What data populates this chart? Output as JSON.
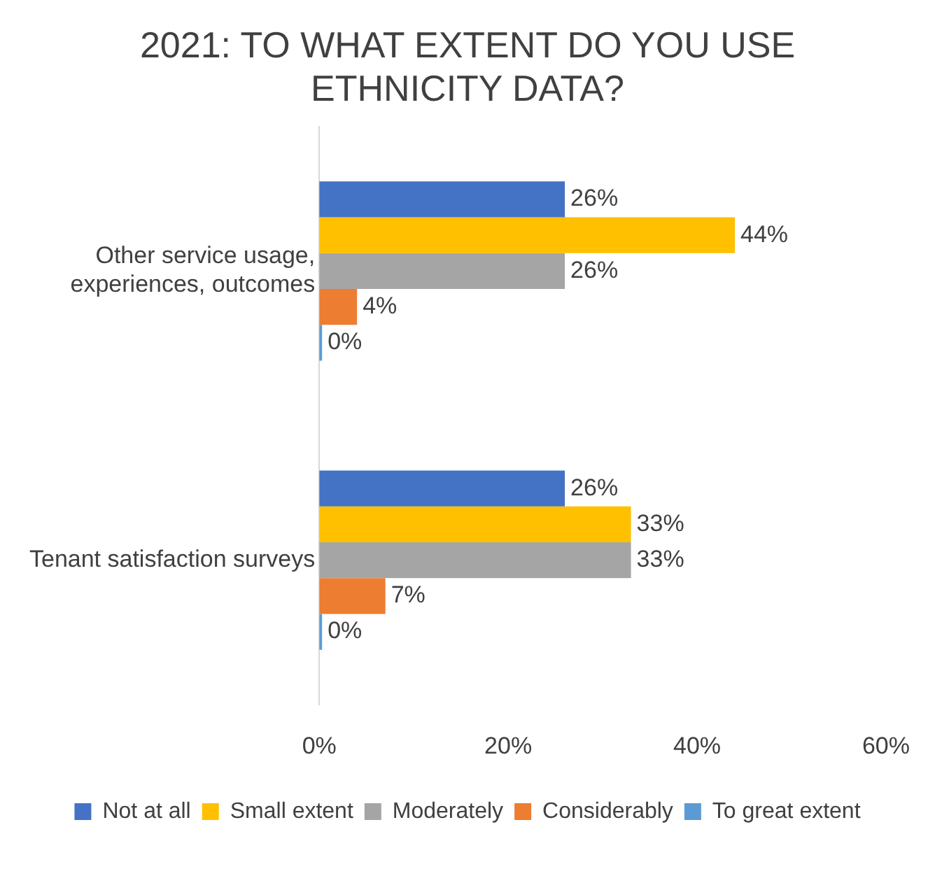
{
  "chart_data": {
    "type": "bar",
    "orientation": "horizontal",
    "title": "2021: TO WHAT EXTENT DO YOU USE ETHNICITY DATA?",
    "categories": [
      "Other service usage, experiences, outcomes",
      "Tenant satisfaction surveys"
    ],
    "series": [
      {
        "name": "Not at all",
        "color": "#4472c4",
        "values": [
          26,
          26
        ],
        "value_labels": [
          "26%",
          "26%"
        ]
      },
      {
        "name": "Small extent",
        "color": "#ffc000",
        "values": [
          44,
          33
        ],
        "value_labels": [
          "44%",
          "33%"
        ]
      },
      {
        "name": "Moderately",
        "color": "#a5a5a5",
        "values": [
          26,
          33
        ],
        "value_labels": [
          "26%",
          "33%"
        ]
      },
      {
        "name": "Considerably",
        "color": "#ed7d31",
        "values": [
          4,
          7
        ],
        "value_labels": [
          "4%",
          "7%"
        ]
      },
      {
        "name": "To great extent",
        "color": "#5b9bd5",
        "values": [
          0,
          0
        ],
        "value_labels": [
          "0%",
          "0%"
        ]
      }
    ],
    "xlim": [
      0,
      60
    ],
    "xticks": [
      {
        "value": 0,
        "label": "0%"
      },
      {
        "value": 20,
        "label": "20%"
      },
      {
        "value": 40,
        "label": "40%"
      },
      {
        "value": 60,
        "label": "60%"
      }
    ],
    "grid": false,
    "legend": "bottom"
  }
}
